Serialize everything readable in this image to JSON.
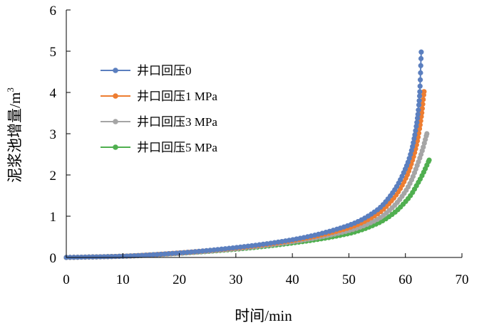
{
  "chart_data": {
    "type": "line",
    "title": "",
    "xlabel": "时间/min",
    "ylabel_main": "泥浆池增量/m",
    "ylabel_sup": "3",
    "xlim": [
      0,
      70
    ],
    "ylim": [
      0,
      6
    ],
    "xticks": [
      0,
      10,
      20,
      30,
      40,
      50,
      60,
      70
    ],
    "yticks": [
      0,
      1,
      2,
      3,
      4,
      5,
      6
    ],
    "xtick_labels": [
      "0",
      "10",
      "20",
      "30",
      "40",
      "50",
      "60",
      "70"
    ],
    "ytick_labels": [
      "0",
      "1",
      "2",
      "3",
      "4",
      "5",
      "6"
    ],
    "grid": false,
    "legend_position": "upper-left",
    "series": [
      {
        "name": "井口回压0",
        "color": "#5B7FBF",
        "x": [
          0,
          10,
          20,
          30,
          40,
          50,
          55,
          58,
          60,
          61,
          62,
          62.5,
          62.8
        ],
        "y": [
          0,
          0.03,
          0.11,
          0.24,
          0.43,
          0.78,
          1.15,
          1.62,
          2.15,
          2.55,
          3.25,
          3.9,
          4.98
        ]
      },
      {
        "name": "井口回压1 MPa",
        "color": "#ED7D31",
        "x": [
          0,
          10,
          20,
          30,
          40,
          50,
          55,
          58,
          60,
          61,
          62,
          62.8,
          63.3
        ],
        "y": [
          0,
          0.03,
          0.11,
          0.23,
          0.41,
          0.72,
          1.05,
          1.45,
          1.9,
          2.25,
          2.75,
          3.4,
          4.02
        ]
      },
      {
        "name": "井口回压3 MPa",
        "color": "#A5A5A5",
        "x": [
          0,
          10,
          20,
          30,
          40,
          50,
          55,
          58,
          60,
          61,
          62,
          63,
          63.8
        ],
        "y": [
          0,
          0.03,
          0.1,
          0.21,
          0.38,
          0.65,
          0.92,
          1.25,
          1.6,
          1.85,
          2.2,
          2.6,
          3.0
        ]
      },
      {
        "name": "井口回压5 MPa",
        "color": "#4FAF4F",
        "x": [
          0,
          10,
          20,
          30,
          40,
          50,
          55,
          58,
          60,
          61,
          62,
          63,
          64.2
        ],
        "y": [
          0,
          0.03,
          0.1,
          0.2,
          0.35,
          0.58,
          0.82,
          1.08,
          1.35,
          1.52,
          1.75,
          2.0,
          2.36
        ]
      }
    ]
  }
}
